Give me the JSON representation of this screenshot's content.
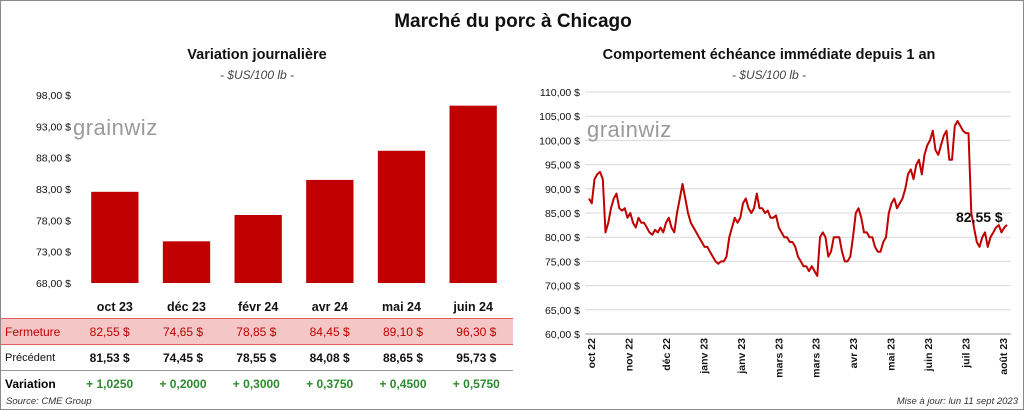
{
  "title": "Marché du porc à Chicago",
  "watermark": "grainwiz",
  "left_panel": {
    "title": "Variation journalière",
    "unit": "- $US/100 lb -"
  },
  "right_panel": {
    "title": "Comportement échéance immédiate depuis 1 an",
    "unit": "- $US/100 lb -",
    "last_value_label": "82,55 $"
  },
  "table": {
    "rows": [
      {
        "label": "Fermeture",
        "values": [
          "82,55 $",
          "74,65 $",
          "78,85 $",
          "84,45 $",
          "89,10 $",
          "96,30 $"
        ]
      },
      {
        "label": "Précédent",
        "values": [
          "81,53 $",
          "74,45 $",
          "78,55 $",
          "84,08 $",
          "88,65 $",
          "95,73 $"
        ]
      },
      {
        "label": "Variation",
        "values": [
          "+ 1,0250",
          "+ 0,2000",
          "+ 0,3000",
          "+ 0,3750",
          "+ 0,4500",
          "+ 0,5750"
        ]
      }
    ]
  },
  "footer": {
    "source": "Source: CME Group",
    "updated": "Mise à jour: lun 11 sept 2023"
  },
  "colors": {
    "bar": "#c00000",
    "line": "#c00000"
  },
  "chart_data": [
    {
      "type": "bar",
      "title": "Variation journalière",
      "categories": [
        "oct 23",
        "déc 23",
        "févr 24",
        "avr 24",
        "mai 24",
        "juin 24"
      ],
      "values": [
        82.55,
        74.65,
        78.85,
        84.45,
        89.1,
        96.3
      ],
      "ylim": [
        68,
        98
      ],
      "yticks": [
        "68,00 $",
        "73,00 $",
        "78,00 $",
        "83,00 $",
        "88,00 $",
        "93,00 $",
        "98,00 $"
      ],
      "grid": false
    },
    {
      "type": "line",
      "title": "Comportement échéance immédiate depuis 1 an",
      "ylim": [
        60,
        110
      ],
      "yticks": [
        "60,00 $",
        "65,00 $",
        "70,00 $",
        "75,00 $",
        "80,00 $",
        "85,00 $",
        "90,00 $",
        "95,00 $",
        "100,00 $",
        "105,00 $",
        "110,00 $"
      ],
      "xticks": [
        "oct 22",
        "nov 22",
        "déc 22",
        "janv 23",
        "janv 23",
        "mars 23",
        "mars 23",
        "avr 23",
        "mai 23",
        "juin 23",
        "juil 23",
        "août 23"
      ],
      "grid": true,
      "series": [
        {
          "values": [
            88,
            87,
            92,
            93,
            93.5,
            92,
            81,
            83,
            86,
            88,
            89,
            86,
            85.5,
            86,
            84,
            85,
            83,
            82,
            84,
            83,
            83,
            82,
            81,
            80.5,
            81.5,
            81,
            82,
            81,
            83,
            84,
            82,
            81,
            85,
            88,
            91,
            88,
            85,
            83,
            82,
            81,
            80,
            79,
            78,
            78,
            77,
            76,
            75,
            74.5,
            75,
            75,
            76,
            80,
            82,
            84,
            83,
            84,
            87,
            88,
            86,
            85,
            86,
            89,
            86,
            86,
            85,
            85.5,
            84,
            84,
            84.5,
            82,
            81,
            80,
            80,
            79,
            79,
            78,
            76,
            75,
            74,
            74,
            73,
            74,
            73,
            72,
            80,
            81,
            80,
            76,
            77,
            80,
            80,
            80,
            77,
            75,
            75,
            76,
            80,
            85,
            86,
            84,
            81,
            81,
            80,
            80,
            78,
            77,
            77,
            79,
            80,
            85,
            87,
            88,
            86,
            87,
            88,
            90,
            93,
            94,
            92,
            95,
            96,
            93,
            97,
            99,
            100,
            102,
            98,
            97,
            99,
            101,
            102,
            96,
            96,
            103,
            104,
            103,
            102,
            101.5,
            101.5,
            85,
            82,
            79,
            78,
            80,
            81,
            78,
            80,
            81,
            82,
            82.5,
            81,
            82,
            82.55
          ]
        }
      ]
    }
  ]
}
